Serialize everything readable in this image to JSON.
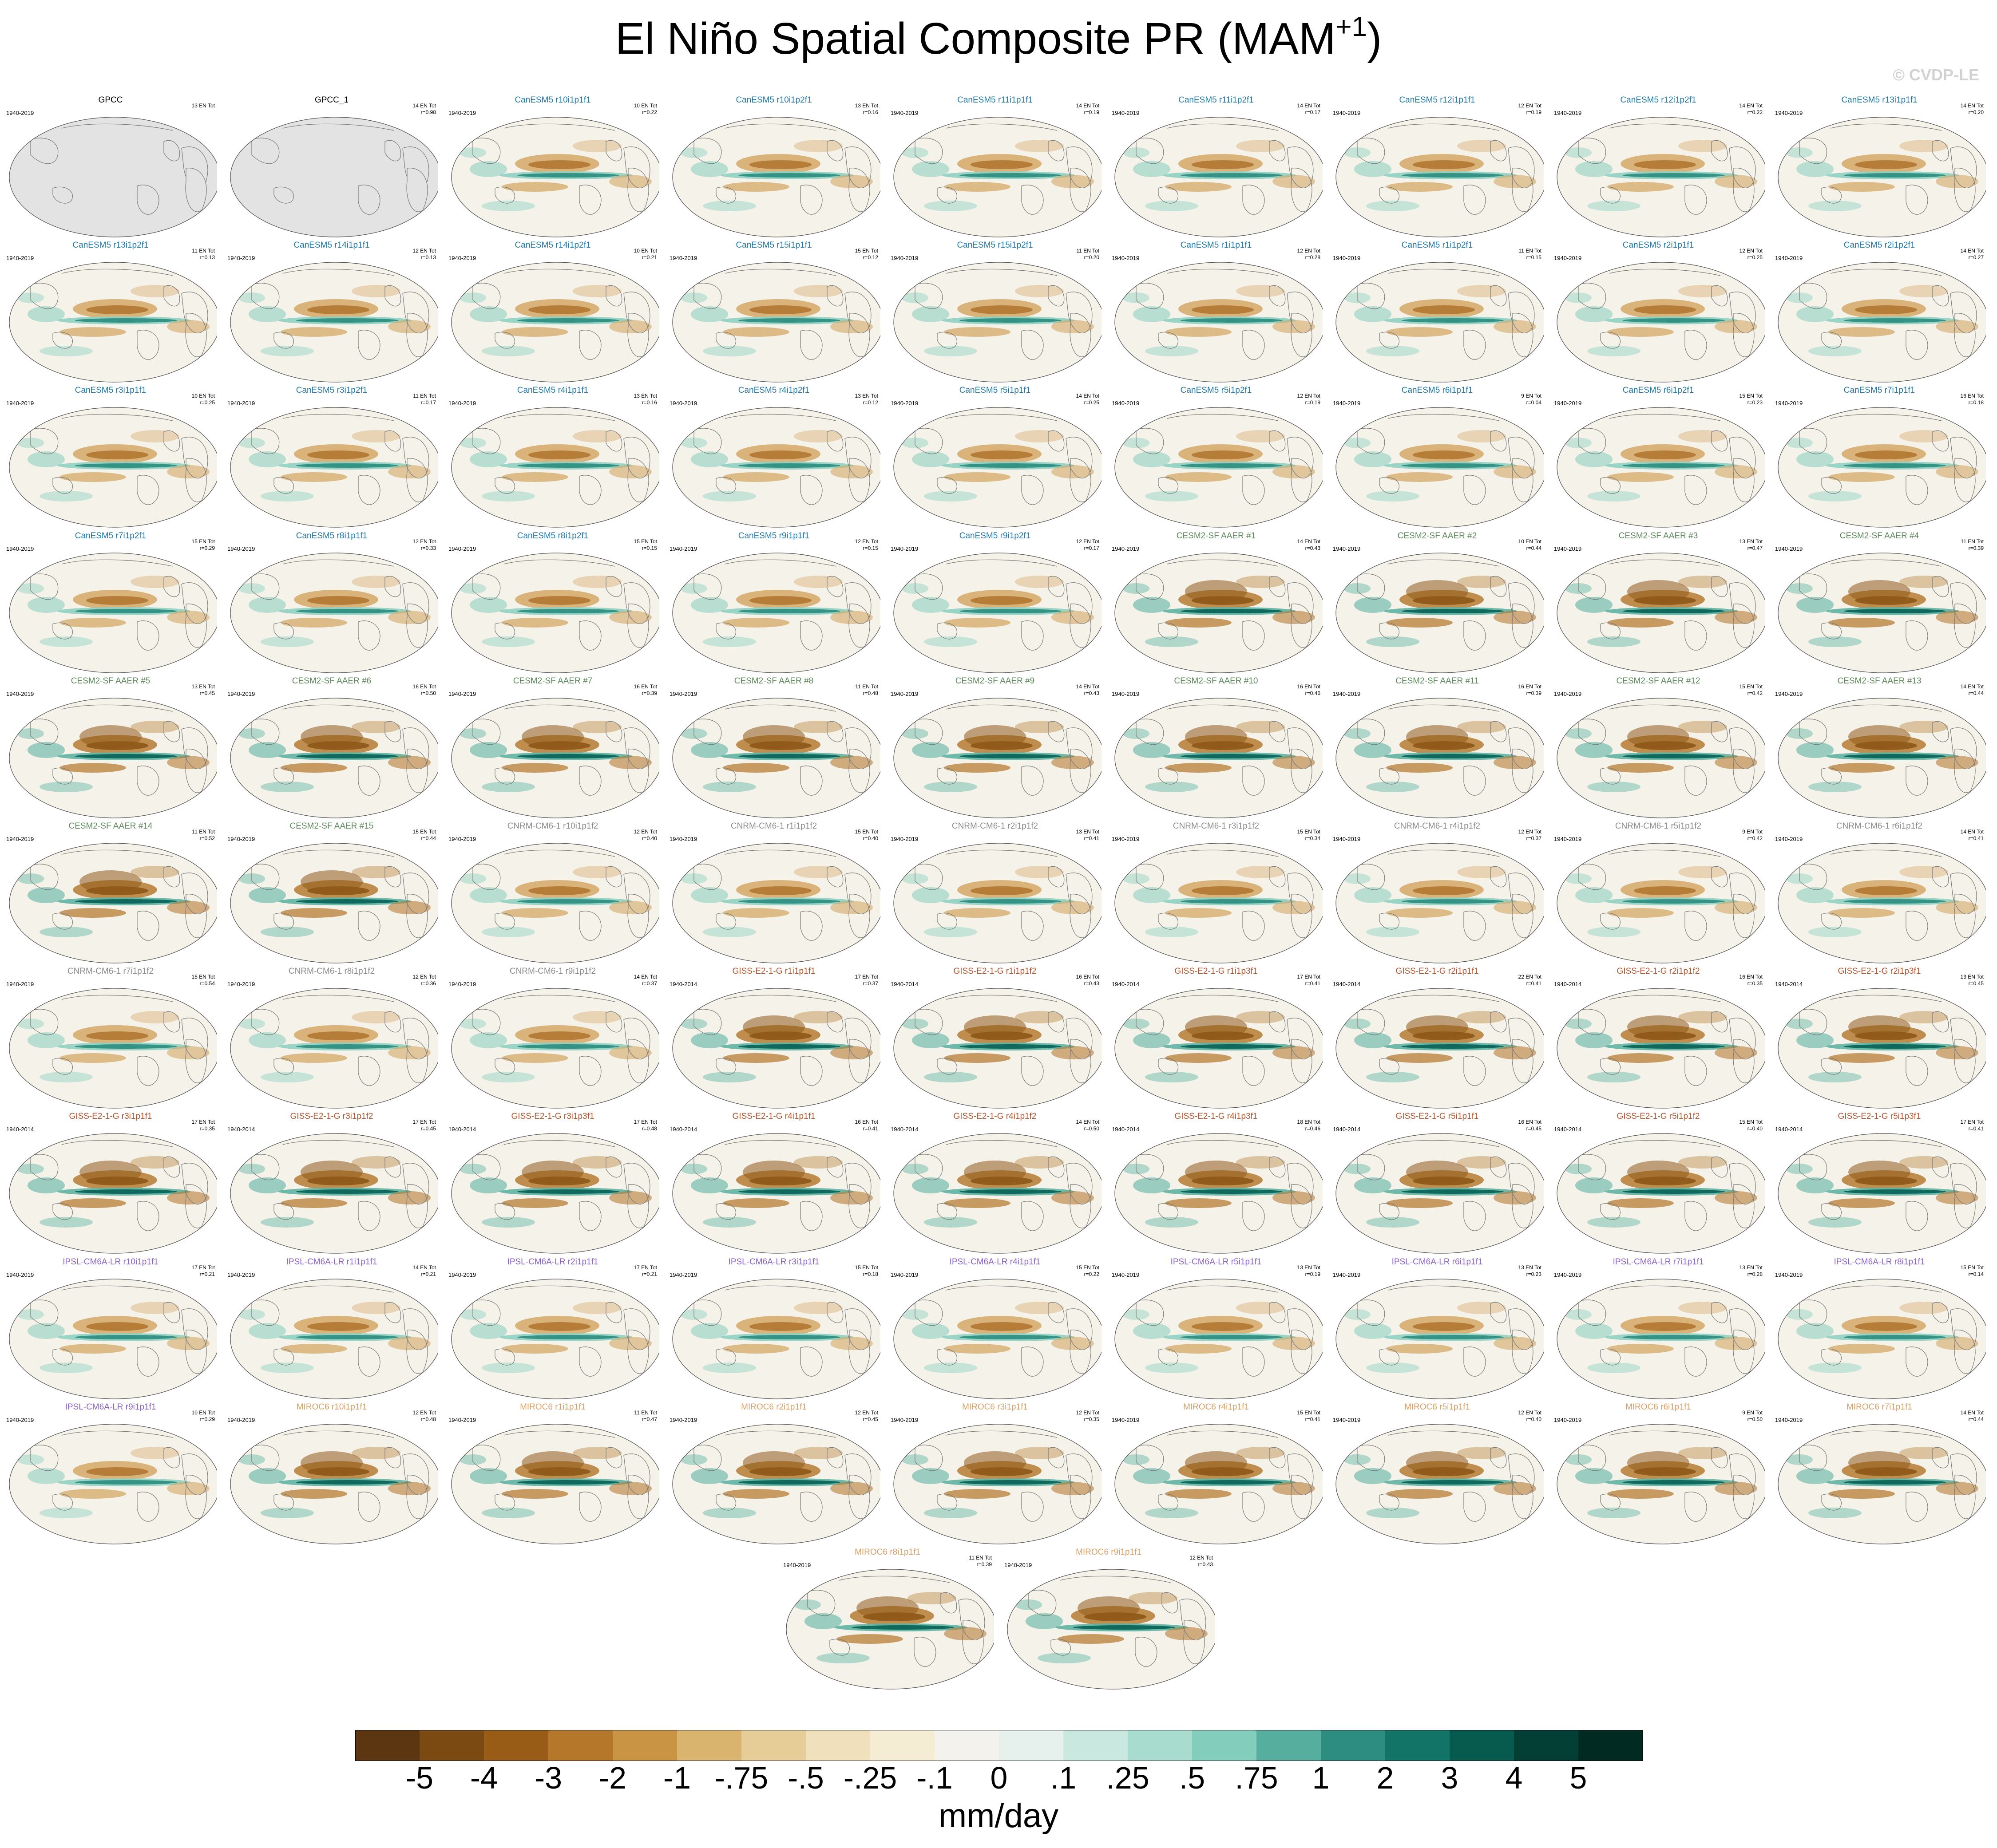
{
  "title": "El Niño Spatial Composite PR (MAM",
  "title_sup": "+1",
  "title_close": ")",
  "copyright": "© CVDP-LE",
  "colorbar": {
    "units": "mm/day",
    "labels": [
      "-5",
      "-4",
      "-3",
      "-2",
      "-1",
      "-.75",
      "-.5",
      "-.25",
      "-.1",
      "0",
      ".1",
      ".25",
      ".5",
      ".75",
      "1",
      "2",
      "3",
      "4",
      "5"
    ],
    "colors": [
      "#5b3610",
      "#7a4a12",
      "#995c16",
      "#b5772a",
      "#c99444",
      "#d8b46e",
      "#e6cd97",
      "#f0e0bb",
      "#f5ecd4",
      "#f4f2ec",
      "#e6f0ec",
      "#c9e8e0",
      "#a7dccf",
      "#82cdbb",
      "#55ae9e",
      "#2d8d80",
      "#117466",
      "#075a4e",
      "#033f35",
      "#012a23"
    ]
  },
  "model_colors": {
    "GPCC": "#000000",
    "CanESM5": "#1f78a8",
    "CESM2-SF AAER": "#5d8a5a",
    "CNRM-CM6-1": "#8c8c8c",
    "GISS-E2-1-G": "#b5532a",
    "IPSL-CM6A-LR": "#8a63c4",
    "MIROC6": "#d9a066"
  },
  "panels": [
    {
      "name": "GPCC",
      "model": "GPCC",
      "years": "1940-2019",
      "stat1": "13 EN Tot",
      "stat2": ""
    },
    {
      "name": "GPCC_1",
      "model": "GPCC",
      "years": "",
      "stat1": "14 EN Tot",
      "stat2": "r=0.98"
    },
    {
      "name": "CanESM5 r10i1p1f1",
      "model": "CanESM5",
      "years": "1940-2019",
      "stat1": "10 EN Tot",
      "stat2": "r=0.22"
    },
    {
      "name": "CanESM5 r10i1p2f1",
      "model": "CanESM5",
      "years": "",
      "stat1": "13 EN Tot",
      "stat2": "r=0.16"
    },
    {
      "name": "CanESM5 r11i1p1f1",
      "model": "CanESM5",
      "years": "1940-2019",
      "stat1": "14 EN Tot",
      "stat2": "r=0.19"
    },
    {
      "name": "CanESM5 r11i1p2f1",
      "model": "CanESM5",
      "years": "1940-2019",
      "stat1": "14 EN Tot",
      "stat2": "r=0.17"
    },
    {
      "name": "CanESM5 r12i1p1f1",
      "model": "CanESM5",
      "years": "1940-2019",
      "stat1": "12 EN Tot",
      "stat2": "r=0.19"
    },
    {
      "name": "CanESM5 r12i1p2f1",
      "model": "CanESM5",
      "years": "1940-2019",
      "stat1": "14 EN Tot",
      "stat2": "r=0.22"
    },
    {
      "name": "CanESM5 r13i1p1f1",
      "model": "CanESM5",
      "years": "1940-2019",
      "stat1": "14 EN Tot",
      "stat2": "r=0.20"
    },
    {
      "name": "CanESM5 r13i1p2f1",
      "model": "CanESM5",
      "years": "1940-2019",
      "stat1": "11 EN Tot",
      "stat2": "r=0.13"
    },
    {
      "name": "CanESM5 r14i1p1f1",
      "model": "CanESM5",
      "years": "1940-2019",
      "stat1": "12 EN Tot",
      "stat2": "r=0.13"
    },
    {
      "name": "CanESM5 r14i1p2f1",
      "model": "CanESM5",
      "years": "1940-2019",
      "stat1": "10 EN Tot",
      "stat2": "r=0.21"
    },
    {
      "name": "CanESM5 r15i1p1f1",
      "model": "CanESM5",
      "years": "1940-2019",
      "stat1": "15 EN Tot",
      "stat2": "r=0.12"
    },
    {
      "name": "CanESM5 r15i1p2f1",
      "model": "CanESM5",
      "years": "1940-2019",
      "stat1": "11 EN Tot",
      "stat2": "r=0.20"
    },
    {
      "name": "CanESM5 r1i1p1f1",
      "model": "CanESM5",
      "years": "1940-2019",
      "stat1": "12 EN Tot",
      "stat2": "r=0.28"
    },
    {
      "name": "CanESM5 r1i1p2f1",
      "model": "CanESM5",
      "years": "1940-2019",
      "stat1": "11 EN Tot",
      "stat2": "r=0.15"
    },
    {
      "name": "CanESM5 r2i1p1f1",
      "model": "CanESM5",
      "years": "1940-2019",
      "stat1": "12 EN Tot",
      "stat2": "r=0.25"
    },
    {
      "name": "CanESM5 r2i1p2f1",
      "model": "CanESM5",
      "years": "1940-2019",
      "stat1": "14 EN Tot",
      "stat2": "r=0.27"
    },
    {
      "name": "CanESM5 r3i1p1f1",
      "model": "CanESM5",
      "years": "1940-2019",
      "stat1": "10 EN Tot",
      "stat2": "r=0.25"
    },
    {
      "name": "CanESM5 r3i1p2f1",
      "model": "CanESM5",
      "years": "1940-2019",
      "stat1": "11 EN Tot",
      "stat2": "r=0.17"
    },
    {
      "name": "CanESM5 r4i1p1f1",
      "model": "CanESM5",
      "years": "1940-2019",
      "stat1": "13 EN Tot",
      "stat2": "r=0.16"
    },
    {
      "name": "CanESM5 r4i1p2f1",
      "model": "CanESM5",
      "years": "1940-2019",
      "stat1": "13 EN Tot",
      "stat2": "r=0.12"
    },
    {
      "name": "CanESM5 r5i1p1f1",
      "model": "CanESM5",
      "years": "1940-2019",
      "stat1": "14 EN Tot",
      "stat2": "r=0.25"
    },
    {
      "name": "CanESM5 r5i1p2f1",
      "model": "CanESM5",
      "years": "1940-2019",
      "stat1": "12 EN Tot",
      "stat2": "r=0.19"
    },
    {
      "name": "CanESM5 r6i1p1f1",
      "model": "CanESM5",
      "years": "1940-2019",
      "stat1": "9 EN Tot",
      "stat2": "r=0.04"
    },
    {
      "name": "CanESM5 r6i1p2f1",
      "model": "CanESM5",
      "years": "1940-2019",
      "stat1": "15 EN Tot",
      "stat2": "r=0.23"
    },
    {
      "name": "CanESM5 r7i1p1f1",
      "model": "CanESM5",
      "years": "1940-2019",
      "stat1": "16 EN Tot",
      "stat2": "r=0.18"
    },
    {
      "name": "CanESM5 r7i1p2f1",
      "model": "CanESM5",
      "years": "1940-2019",
      "stat1": "15 EN Tot",
      "stat2": "r=0.29"
    },
    {
      "name": "CanESM5 r8i1p1f1",
      "model": "CanESM5",
      "years": "1940-2019",
      "stat1": "12 EN Tot",
      "stat2": "r=0.33"
    },
    {
      "name": "CanESM5 r8i1p2f1",
      "model": "CanESM5",
      "years": "1940-2019",
      "stat1": "15 EN Tot",
      "stat2": "r=0.15"
    },
    {
      "name": "CanESM5 r9i1p1f1",
      "model": "CanESM5",
      "years": "1940-2019",
      "stat1": "12 EN Tot",
      "stat2": "r=0.15"
    },
    {
      "name": "CanESM5 r9i1p2f1",
      "model": "CanESM5",
      "years": "1940-2019",
      "stat1": "12 EN Tot",
      "stat2": "r=0.17"
    },
    {
      "name": "CESM2-SF AAER #1",
      "model": "CESM2-SF AAER",
      "years": "1940-2019",
      "stat1": "14 EN Tot",
      "stat2": "r=0.43"
    },
    {
      "name": "CESM2-SF AAER #2",
      "model": "CESM2-SF AAER",
      "years": "1940-2019",
      "stat1": "10 EN Tot",
      "stat2": "r=0.44"
    },
    {
      "name": "CESM2-SF AAER #3",
      "model": "CESM2-SF AAER",
      "years": "1940-2019",
      "stat1": "13 EN Tot",
      "stat2": "r=0.47"
    },
    {
      "name": "CESM2-SF AAER #4",
      "model": "CESM2-SF AAER",
      "years": "1940-2019",
      "stat1": "11 EN Tot",
      "stat2": "r=0.39"
    },
    {
      "name": "CESM2-SF AAER #5",
      "model": "CESM2-SF AAER",
      "years": "1940-2019",
      "stat1": "13 EN Tot",
      "stat2": "r=0.45"
    },
    {
      "name": "CESM2-SF AAER #6",
      "model": "CESM2-SF AAER",
      "years": "1940-2019",
      "stat1": "16 EN Tot",
      "stat2": "r=0.50"
    },
    {
      "name": "CESM2-SF AAER #7",
      "model": "CESM2-SF AAER",
      "years": "1940-2019",
      "stat1": "16 EN Tot",
      "stat2": "r=0.39"
    },
    {
      "name": "CESM2-SF AAER #8",
      "model": "CESM2-SF AAER",
      "years": "1940-2019",
      "stat1": "11 EN Tot",
      "stat2": "r=0.48"
    },
    {
      "name": "CESM2-SF AAER #9",
      "model": "CESM2-SF AAER",
      "years": "1940-2019",
      "stat1": "14 EN Tot",
      "stat2": "r=0.43"
    },
    {
      "name": "CESM2-SF AAER #10",
      "model": "CESM2-SF AAER",
      "years": "1940-2019",
      "stat1": "16 EN Tot",
      "stat2": "r=0.46"
    },
    {
      "name": "CESM2-SF AAER #11",
      "model": "CESM2-SF AAER",
      "years": "1940-2019",
      "stat1": "16 EN Tot",
      "stat2": "r=0.39"
    },
    {
      "name": "CESM2-SF AAER #12",
      "model": "CESM2-SF AAER",
      "years": "1940-2019",
      "stat1": "15 EN Tot",
      "stat2": "r=0.42"
    },
    {
      "name": "CESM2-SF AAER #13",
      "model": "CESM2-SF AAER",
      "years": "1940-2019",
      "stat1": "14 EN Tot",
      "stat2": "r=0.44"
    },
    {
      "name": "CESM2-SF AAER #14",
      "model": "CESM2-SF AAER",
      "years": "1940-2019",
      "stat1": "11 EN Tot",
      "stat2": "r=0.52"
    },
    {
      "name": "CESM2-SF AAER #15",
      "model": "CESM2-SF AAER",
      "years": "1940-2019",
      "stat1": "15 EN Tot",
      "stat2": "r=0.44"
    },
    {
      "name": "CNRM-CM6-1 r10i1p1f2",
      "model": "CNRM-CM6-1",
      "years": "1940-2019",
      "stat1": "12 EN Tot",
      "stat2": "r=0.40"
    },
    {
      "name": "CNRM-CM6-1 r1i1p1f2",
      "model": "CNRM-CM6-1",
      "years": "1940-2019",
      "stat1": "15 EN Tot",
      "stat2": "r=0.40"
    },
    {
      "name": "CNRM-CM6-1 r2i1p1f2",
      "model": "CNRM-CM6-1",
      "years": "1940-2019",
      "stat1": "13 EN Tot",
      "stat2": "r=0.41"
    },
    {
      "name": "CNRM-CM6-1 r3i1p1f2",
      "model": "CNRM-CM6-1",
      "years": "1940-2019",
      "stat1": "15 EN Tot",
      "stat2": "r=0.34"
    },
    {
      "name": "CNRM-CM6-1 r4i1p1f2",
      "model": "CNRM-CM6-1",
      "years": "1940-2019",
      "stat1": "12 EN Tot",
      "stat2": "r=0.37"
    },
    {
      "name": "CNRM-CM6-1 r5i1p1f2",
      "model": "CNRM-CM6-1",
      "years": "1940-2019",
      "stat1": "9 EN Tot",
      "stat2": "r=0.42"
    },
    {
      "name": "CNRM-CM6-1 r6i1p1f2",
      "model": "CNRM-CM6-1",
      "years": "1940-2019",
      "stat1": "14 EN Tot",
      "stat2": "r=0.41"
    },
    {
      "name": "CNRM-CM6-1 r7i1p1f2",
      "model": "CNRM-CM6-1",
      "years": "1940-2019",
      "stat1": "15 EN Tot",
      "stat2": "r=0.54"
    },
    {
      "name": "CNRM-CM6-1 r8i1p1f2",
      "model": "CNRM-CM6-1",
      "years": "1940-2019",
      "stat1": "12 EN Tot",
      "stat2": "r=0.36"
    },
    {
      "name": "CNRM-CM6-1 r9i1p1f2",
      "model": "CNRM-CM6-1",
      "years": "1940-2019",
      "stat1": "14 EN Tot",
      "stat2": "r=0.37"
    },
    {
      "name": "GISS-E2-1-G r1i1p1f1",
      "model": "GISS-E2-1-G",
      "years": "1940-2014",
      "stat1": "17 EN Tot",
      "stat2": "r=0.37"
    },
    {
      "name": "GISS-E2-1-G r1i1p1f2",
      "model": "GISS-E2-1-G",
      "years": "1940-2014",
      "stat1": "16 EN Tot",
      "stat2": "r=0.43"
    },
    {
      "name": "GISS-E2-1-G r1i1p3f1",
      "model": "GISS-E2-1-G",
      "years": "1940-2014",
      "stat1": "17 EN Tot",
      "stat2": "r=0.41"
    },
    {
      "name": "GISS-E2-1-G r2i1p1f1",
      "model": "GISS-E2-1-G",
      "years": "1940-2014",
      "stat1": "22 EN Tot",
      "stat2": "r=0.41"
    },
    {
      "name": "GISS-E2-1-G r2i1p1f2",
      "model": "GISS-E2-1-G",
      "years": "1940-2014",
      "stat1": "16 EN Tot",
      "stat2": "r=0.35"
    },
    {
      "name": "GISS-E2-1-G r2i1p3f1",
      "model": "GISS-E2-1-G",
      "years": "1940-2014",
      "stat1": "13 EN Tot",
      "stat2": "r=0.45"
    },
    {
      "name": "GISS-E2-1-G r3i1p1f1",
      "model": "GISS-E2-1-G",
      "years": "1940-2014",
      "stat1": "17 EN Tot",
      "stat2": "r=0.35"
    },
    {
      "name": "GISS-E2-1-G r3i1p1f2",
      "model": "GISS-E2-1-G",
      "years": "1940-2014",
      "stat1": "17 EN Tot",
      "stat2": "r=0.45"
    },
    {
      "name": "GISS-E2-1-G r3i1p3f1",
      "model": "GISS-E2-1-G",
      "years": "1940-2014",
      "stat1": "17 EN Tot",
      "stat2": "r=0.48"
    },
    {
      "name": "GISS-E2-1-G r4i1p1f1",
      "model": "GISS-E2-1-G",
      "years": "1940-2014",
      "stat1": "16 EN Tot",
      "stat2": "r=0.41"
    },
    {
      "name": "GISS-E2-1-G r4i1p1f2",
      "model": "GISS-E2-1-G",
      "years": "1940-2014",
      "stat1": "14 EN Tot",
      "stat2": "r=0.50"
    },
    {
      "name": "GISS-E2-1-G r4i1p3f1",
      "model": "GISS-E2-1-G",
      "years": "1940-2014",
      "stat1": "18 EN Tot",
      "stat2": "r=0.46"
    },
    {
      "name": "GISS-E2-1-G r5i1p1f1",
      "model": "GISS-E2-1-G",
      "years": "1940-2014",
      "stat1": "16 EN Tot",
      "stat2": "r=0.45"
    },
    {
      "name": "GISS-E2-1-G r5i1p1f2",
      "model": "GISS-E2-1-G",
      "years": "1940-2014",
      "stat1": "15 EN Tot",
      "stat2": "r=0.40"
    },
    {
      "name": "GISS-E2-1-G r5i1p3f1",
      "model": "GISS-E2-1-G",
      "years": "1940-2014",
      "stat1": "17 EN Tot",
      "stat2": "r=0.41"
    },
    {
      "name": "IPSL-CM6A-LR r10i1p1f1",
      "model": "IPSL-CM6A-LR",
      "years": "1940-2019",
      "stat1": "17 EN Tot",
      "stat2": "r=0.21"
    },
    {
      "name": "IPSL-CM6A-LR r1i1p1f1",
      "model": "IPSL-CM6A-LR",
      "years": "1940-2019",
      "stat1": "14 EN Tot",
      "stat2": "r=0.21"
    },
    {
      "name": "IPSL-CM6A-LR r2i1p1f1",
      "model": "IPSL-CM6A-LR",
      "years": "1940-2019",
      "stat1": "17 EN Tot",
      "stat2": "r=0.21"
    },
    {
      "name": "IPSL-CM6A-LR r3i1p1f1",
      "model": "IPSL-CM6A-LR",
      "years": "1940-2019",
      "stat1": "15 EN Tot",
      "stat2": "r=0.18"
    },
    {
      "name": "IPSL-CM6A-LR r4i1p1f1",
      "model": "IPSL-CM6A-LR",
      "years": "1940-2019",
      "stat1": "15 EN Tot",
      "stat2": "r=0.22"
    },
    {
      "name": "IPSL-CM6A-LR r5i1p1f1",
      "model": "IPSL-CM6A-LR",
      "years": "1940-2019",
      "stat1": "13 EN Tot",
      "stat2": "r=0.19"
    },
    {
      "name": "IPSL-CM6A-LR r6i1p1f1",
      "model": "IPSL-CM6A-LR",
      "years": "1940-2019",
      "stat1": "13 EN Tot",
      "stat2": "r=0.23"
    },
    {
      "name": "IPSL-CM6A-LR r7i1p1f1",
      "model": "IPSL-CM6A-LR",
      "years": "1940-2019",
      "stat1": "13 EN Tot",
      "stat2": "r=0.28"
    },
    {
      "name": "IPSL-CM6A-LR r8i1p1f1",
      "model": "IPSL-CM6A-LR",
      "years": "1940-2019",
      "stat1": "15 EN Tot",
      "stat2": "r=0.14"
    },
    {
      "name": "IPSL-CM6A-LR r9i1p1f1",
      "model": "IPSL-CM6A-LR",
      "years": "1940-2019",
      "stat1": "10 EN Tot",
      "stat2": "r=0.29"
    },
    {
      "name": "MIROC6 r10i1p1f1",
      "model": "MIROC6",
      "years": "1940-2019",
      "stat1": "12 EN Tot",
      "stat2": "r=0.48"
    },
    {
      "name": "MIROC6 r1i1p1f1",
      "model": "MIROC6",
      "years": "1940-2019",
      "stat1": "11 EN Tot",
      "stat2": "r=0.47"
    },
    {
      "name": "MIROC6 r2i1p1f1",
      "model": "MIROC6",
      "years": "1940-2019",
      "stat1": "12 EN Tot",
      "stat2": "r=0.45"
    },
    {
      "name": "MIROC6 r3i1p1f1",
      "model": "MIROC6",
      "years": "1940-2019",
      "stat1": "12 EN Tot",
      "stat2": "r=0.35"
    },
    {
      "name": "MIROC6 r4i1p1f1",
      "model": "MIROC6",
      "years": "1940-2019",
      "stat1": "15 EN Tot",
      "stat2": "r=0.41"
    },
    {
      "name": "MIROC6 r5i1p1f1",
      "model": "MIROC6",
      "years": "1940-2019",
      "stat1": "12 EN Tot",
      "stat2": "r=0.40"
    },
    {
      "name": "MIROC6 r6i1p1f1",
      "model": "MIROC6",
      "years": "1940-2019",
      "stat1": "9 EN Tot",
      "stat2": "r=0.50"
    },
    {
      "name": "MIROC6 r7i1p1f1",
      "model": "MIROC6",
      "years": "1940-2019",
      "stat1": "14 EN Tot",
      "stat2": "r=0.44"
    },
    {
      "name": "MIROC6 r8i1p1f1",
      "model": "MIROC6",
      "years": "1940-2019",
      "stat1": "11 EN Tot",
      "stat2": "r=0.39"
    },
    {
      "name": "MIROC6 r9i1p1f1",
      "model": "MIROC6",
      "years": "1940-2019",
      "stat1": "12 EN Tot",
      "stat2": "r=0.43"
    }
  ]
}
